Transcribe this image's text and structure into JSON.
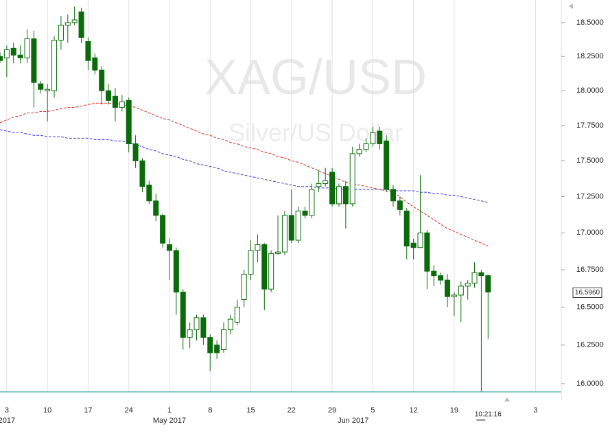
{
  "chart_data": {
    "type": "candlestick",
    "title": "XAG/USD",
    "subtitle": "Silver/US Dollar",
    "open": [
      18.25,
      18.24,
      18.31,
      18.26,
      18.24,
      18.38,
      18.05,
      18.0,
      18.0,
      18.37,
      18.48,
      18.5,
      18.58,
      18.36,
      18.24,
      18.15,
      18.0,
      17.96,
      17.88,
      17.93,
      17.62,
      17.5,
      17.33,
      17.22,
      17.12,
      16.92,
      16.88,
      16.6,
      16.3,
      16.35,
      16.43,
      16.3,
      16.25,
      16.22,
      16.35,
      16.4,
      16.55,
      16.72,
      16.88,
      16.92,
      16.62,
      16.86,
      16.87,
      17.12,
      16.95,
      17.15,
      17.12,
      17.32,
      17.34,
      17.42,
      17.2,
      17.32,
      17.2,
      17.55,
      17.58,
      17.62,
      17.71,
      17.64,
      17.3,
      17.22,
      17.15,
      16.93,
      16.9,
      17.0,
      16.74,
      16.71,
      16.68,
      16.57,
      16.58,
      16.64,
      16.66,
      16.73,
      16.71
    ],
    "high": [
      18.28,
      18.33,
      18.35,
      18.33,
      18.45,
      18.44,
      18.07,
      18.05,
      18.4,
      18.55,
      18.56,
      18.62,
      18.61,
      18.39,
      18.27,
      18.18,
      18.05,
      18.02,
      17.97,
      17.95,
      17.68,
      17.52,
      17.36,
      17.27,
      17.13,
      16.96,
      16.9,
      16.62,
      16.4,
      16.45,
      16.45,
      16.32,
      16.28,
      16.4,
      16.45,
      16.55,
      16.75,
      16.95,
      16.99,
      16.93,
      16.88,
      17.12,
      17.15,
      17.3,
      17.18,
      17.18,
      17.34,
      17.44,
      17.45,
      17.45,
      17.34,
      17.36,
      17.6,
      17.62,
      17.66,
      17.74,
      17.74,
      17.68,
      17.33,
      17.25,
      17.17,
      16.96,
      17.4,
      17.02,
      16.78,
      16.73,
      16.72,
      16.6,
      16.67,
      16.68,
      16.8,
      16.75,
      16.72
    ],
    "low": [
      18.2,
      18.1,
      18.2,
      18.2,
      18.2,
      17.88,
      17.98,
      17.78,
      17.95,
      18.3,
      18.35,
      18.48,
      18.35,
      18.15,
      18.12,
      17.9,
      17.9,
      17.78,
      17.85,
      17.56,
      17.45,
      17.28,
      17.2,
      17.08,
      16.9,
      16.68,
      16.45,
      16.22,
      16.23,
      16.28,
      16.25,
      16.08,
      16.16,
      16.2,
      16.32,
      16.38,
      16.5,
      16.68,
      16.8,
      16.48,
      16.6,
      16.85,
      16.85,
      16.93,
      16.93,
      17.1,
      17.1,
      17.28,
      17.32,
      17.18,
      17.18,
      17.03,
      17.18,
      17.53,
      17.56,
      17.6,
      17.58,
      17.28,
      17.18,
      17.12,
      16.82,
      16.82,
      16.9,
      16.62,
      16.64,
      16.65,
      16.5,
      16.44,
      16.4,
      16.55,
      16.63,
      15.95,
      16.29
    ],
    "close": [
      18.22,
      18.3,
      18.26,
      18.24,
      18.38,
      18.06,
      18.01,
      18.01,
      18.37,
      18.48,
      18.5,
      18.52,
      18.39,
      18.22,
      18.15,
      18.0,
      17.93,
      17.88,
      17.92,
      17.62,
      17.5,
      17.32,
      17.22,
      17.12,
      16.93,
      16.88,
      16.6,
      16.3,
      16.35,
      16.43,
      16.3,
      16.2,
      16.2,
      16.35,
      16.42,
      16.5,
      16.72,
      16.88,
      16.92,
      16.62,
      16.86,
      16.87,
      17.12,
      16.95,
      17.15,
      17.12,
      17.3,
      17.34,
      17.36,
      17.2,
      17.32,
      17.2,
      17.55,
      17.58,
      17.62,
      17.7,
      17.62,
      17.3,
      17.22,
      17.16,
      16.91,
      16.9,
      17.0,
      16.74,
      16.71,
      16.68,
      16.57,
      16.58,
      16.64,
      16.66,
      16.73,
      16.71,
      16.6
    ],
    "up_color": "#ffffff",
    "down_color": "#0b6b0b",
    "series": [
      {
        "color": "#e03030",
        "values": [
          17.77,
          17.79,
          17.81,
          17.82,
          17.84,
          17.84,
          17.85,
          17.85,
          17.86,
          17.87,
          17.88,
          17.88,
          17.89,
          17.9,
          17.91,
          17.91,
          17.91,
          17.91,
          17.9,
          17.89,
          17.88,
          17.86,
          17.84,
          17.82,
          17.8,
          17.79,
          17.77,
          17.75,
          17.73,
          17.71,
          17.69,
          17.68,
          17.66,
          17.65,
          17.63,
          17.62,
          17.6,
          17.59,
          17.58,
          17.56,
          17.55,
          17.53,
          17.52,
          17.5,
          17.49,
          17.47,
          17.45,
          17.43,
          17.41,
          17.39,
          17.37,
          17.35,
          17.34,
          17.33,
          17.32,
          17.31,
          17.3,
          17.29,
          17.28,
          17.25,
          17.21,
          17.18,
          17.15,
          17.12,
          17.09,
          17.06,
          17.03,
          17.01,
          16.99,
          16.97,
          16.95,
          16.93,
          16.91
        ]
      },
      {
        "color": "#3a3ad0",
        "values": [
          17.72,
          17.71,
          17.7,
          17.7,
          17.69,
          17.68,
          17.68,
          17.67,
          17.67,
          17.67,
          17.66,
          17.66,
          17.66,
          17.66,
          17.65,
          17.65,
          17.65,
          17.64,
          17.64,
          17.63,
          17.61,
          17.6,
          17.58,
          17.57,
          17.55,
          17.54,
          17.53,
          17.51,
          17.5,
          17.48,
          17.47,
          17.46,
          17.45,
          17.43,
          17.42,
          17.41,
          17.4,
          17.39,
          17.38,
          17.37,
          17.36,
          17.35,
          17.34,
          17.33,
          17.32,
          17.32,
          17.32,
          17.31,
          17.31,
          17.31,
          17.3,
          17.3,
          17.3,
          17.3,
          17.3,
          17.3,
          17.3,
          17.3,
          17.29,
          17.29,
          17.29,
          17.29,
          17.28,
          17.28,
          17.27,
          17.27,
          17.26,
          17.26,
          17.25,
          17.24,
          17.23,
          17.22,
          17.21
        ]
      }
    ],
    "xlim": [
      0,
      82.8
    ],
    "xticks": [
      {
        "value": 1,
        "label": "3"
      },
      {
        "value": 7,
        "label": "10"
      },
      {
        "value": 13,
        "label": "17"
      },
      {
        "value": 19,
        "label": "24"
      },
      {
        "value": 25,
        "label": "1"
      },
      {
        "value": 31,
        "label": "8"
      },
      {
        "value": 37,
        "label": "15"
      },
      {
        "value": 43,
        "label": "22"
      },
      {
        "value": 49,
        "label": "29"
      },
      {
        "value": 55,
        "label": "5"
      },
      {
        "value": 61,
        "label": "12"
      },
      {
        "value": 67,
        "label": "19"
      },
      {
        "value": 79,
        "label": "3"
      }
    ],
    "month_labels": [
      {
        "value": 1,
        "label": "2017"
      },
      {
        "value": 25,
        "label": "May 2017"
      },
      {
        "value": 52.1,
        "label": "Jun 2017"
      }
    ],
    "ylim": [
      15.947,
      18.669
    ],
    "ylog": true,
    "xgrid": true,
    "yticks": [
      {
        "value": 16,
        "label": "16.0000"
      },
      {
        "value": 16.25,
        "label": "16.2500"
      },
      {
        "value": 16.5,
        "label": "16.5000"
      },
      {
        "value": 16.75,
        "label": "16.7500"
      },
      {
        "value": 17,
        "label": "17.0000"
      },
      {
        "value": 17.25,
        "label": "17.2500"
      },
      {
        "value": 17.5,
        "label": "17.5000"
      },
      {
        "value": 17.75,
        "label": "17.7500"
      },
      {
        "value": 18,
        "label": "18.0000"
      },
      {
        "value": 18.25,
        "label": "18.2500"
      },
      {
        "value": 18.5,
        "label": "18.5000"
      }
    ],
    "last_price": 16.596,
    "last_price_label": "16.5960",
    "time_label": "10:21:16"
  }
}
